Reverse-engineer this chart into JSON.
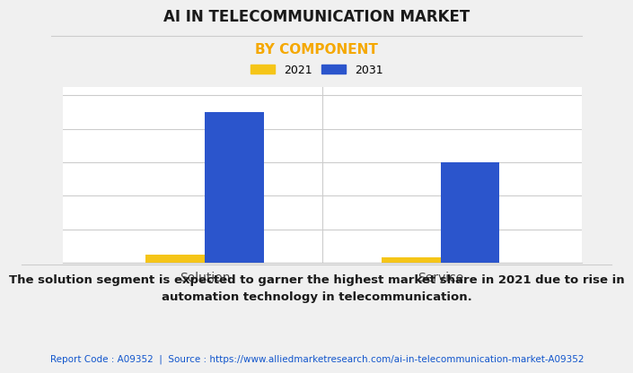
{
  "title": "AI IN TELECOMMUNICATION MARKET",
  "subtitle": "BY COMPONENT",
  "categories": [
    "Solution",
    "Service"
  ],
  "years": [
    "2021",
    "2031"
  ],
  "values_2021": [
    0.5,
    0.35
  ],
  "values_2031": [
    9.0,
    6.0
  ],
  "color_2021": "#F5C518",
  "color_2031": "#2B55CC",
  "title_fontsize": 12,
  "subtitle_fontsize": 11,
  "subtitle_color": "#F5A800",
  "legend_fontsize": 9,
  "axis_label_fontsize": 10,
  "bar_width": 0.25,
  "background_color": "#f0f0f0",
  "plot_bg_color": "#ffffff",
  "annotation_text": "The solution segment is expected to garner the highest market share in 2021 due to rise in\nautomation technology in telecommunication.",
  "source_text": "Report Code : A09352  |  Source : https://www.alliedmarketresearch.com/ai-in-telecommunication-market-A09352",
  "annotation_fontsize": 9.5,
  "source_fontsize": 7.5,
  "source_color": "#1155CC",
  "ylim": [
    0,
    10.5
  ],
  "divider_color": "#cccccc",
  "grid_color": "#cccccc",
  "xticklabel_color": "#444444"
}
